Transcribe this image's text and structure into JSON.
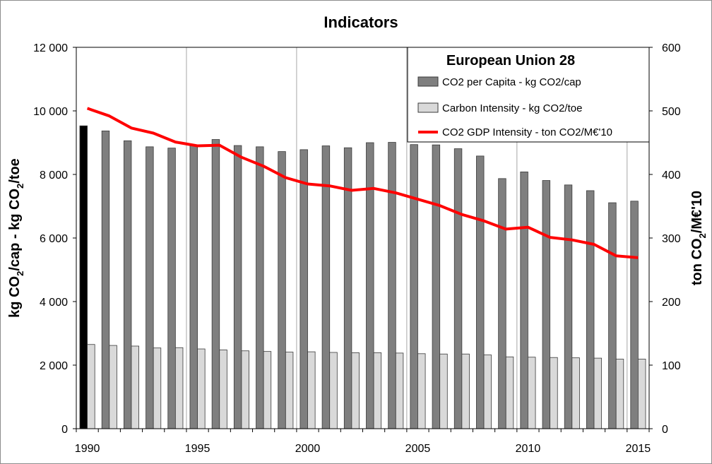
{
  "chart_data": {
    "type": "bar",
    "title": "Indicators",
    "x": [
      1990,
      1991,
      1992,
      1993,
      1994,
      1995,
      1996,
      1997,
      1998,
      1999,
      2000,
      2001,
      2002,
      2003,
      2004,
      2005,
      2006,
      2007,
      2008,
      2009,
      2010,
      2011,
      2012,
      2013,
      2014,
      2015
    ],
    "x_tick_labels": [
      "1990",
      "1995",
      "2000",
      "2005",
      "2010",
      "2015"
    ],
    "y_left": {
      "label_prefix": "kg CO",
      "label_sub1": "2",
      "label_mid": "/cap - kg CO",
      "label_sub2": "2",
      "label_suffix": "/toe",
      "lim": [
        0,
        12000
      ],
      "tick_labels": [
        "0",
        "2 000",
        "4 000",
        "6 000",
        "8 000",
        "10 000",
        "12 000"
      ]
    },
    "y_right": {
      "label_prefix": "ton CO",
      "label_sub": "2",
      "label_suffix": "/M€'10",
      "lim": [
        0,
        600
      ],
      "tick_labels": [
        "0",
        "100",
        "200",
        "300",
        "400",
        "500",
        "600"
      ]
    },
    "grid": "vertical",
    "legend": {
      "placement": "top-right",
      "title": "European Union 28"
    },
    "series": [
      {
        "name": "CO2 per Capita - kg CO2/cap",
        "type": "bar",
        "axis": "left",
        "color": "#7f7f7f",
        "highlight_color": "#000000",
        "values": [
          9530,
          9370,
          9060,
          8870,
          8830,
          8900,
          9100,
          8910,
          8870,
          8720,
          8780,
          8900,
          8840,
          9000,
          9010,
          8940,
          8930,
          8810,
          8580,
          7870,
          8080,
          7810,
          7670,
          7490,
          7110,
          7160
        ]
      },
      {
        "name": "Carbon Intensity - kg CO2/toe",
        "type": "bar",
        "axis": "left",
        "color": "#d9d9d9",
        "values": [
          2650,
          2620,
          2600,
          2540,
          2550,
          2510,
          2480,
          2450,
          2430,
          2410,
          2420,
          2400,
          2390,
          2390,
          2380,
          2360,
          2350,
          2350,
          2320,
          2260,
          2250,
          2240,
          2230,
          2220,
          2190,
          2190
        ]
      },
      {
        "name": "CO2 GDP Intensity - ton CO2/M€'10",
        "type": "line",
        "axis": "right",
        "color": "#ff0000",
        "values": [
          504,
          492,
          473,
          465,
          451,
          445,
          446,
          427,
          413,
          395,
          385,
          382,
          375,
          378,
          371,
          361,
          351,
          337,
          327,
          314,
          317,
          301,
          297,
          290,
          272,
          269
        ]
      }
    ]
  }
}
